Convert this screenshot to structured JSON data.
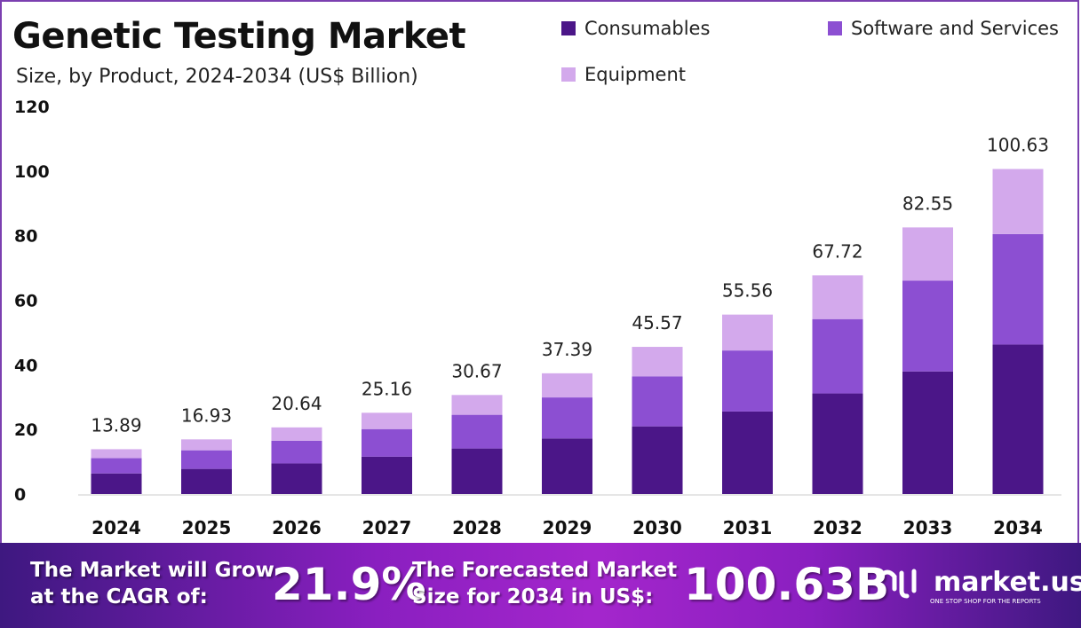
{
  "title": "Genetic Testing Market",
  "subtitle": "Size, by Product, 2024-2034 (US$ Billion)",
  "chart_data": {
    "type": "bar",
    "stacked": true,
    "title": "Genetic Testing Market",
    "subtitle": "Size, by Product, 2024-2034 (US$ Billion)",
    "categories": [
      "2024",
      "2025",
      "2026",
      "2027",
      "2028",
      "2029",
      "2030",
      "2031",
      "2032",
      "2033",
      "2034"
    ],
    "series": [
      {
        "name": "Consumables",
        "color": "#4b1688",
        "values": [
          6.39,
          7.79,
          9.49,
          11.57,
          14.11,
          17.2,
          20.96,
          25.56,
          31.15,
          37.97,
          46.29
        ]
      },
      {
        "name": "Software and Services",
        "color": "#8c4fd2",
        "values": [
          4.72,
          5.76,
          7.02,
          8.55,
          10.43,
          12.71,
          15.49,
          18.89,
          23.02,
          28.07,
          34.21
        ]
      },
      {
        "name": "Equipment",
        "color": "#d3a9ec",
        "values": [
          2.78,
          3.38,
          4.13,
          5.04,
          6.13,
          7.48,
          9.12,
          11.11,
          13.55,
          16.51,
          20.13
        ]
      }
    ],
    "totals": [
      "13.89",
      "16.93",
      "20.64",
      "25.16",
      "30.67",
      "37.39",
      "45.57",
      "55.56",
      "67.72",
      "82.55",
      "100.63"
    ],
    "ylim": [
      0,
      120
    ],
    "yticks": [
      "0",
      "20",
      "40",
      "60",
      "80",
      "100",
      "120"
    ],
    "grid": false,
    "legend_position": "top-right"
  },
  "footer": {
    "cagr_text_line1": "The Market will Grow",
    "cagr_text_line2": "at the CAGR of:",
    "cagr_value": "21.9%",
    "forecast_text_line1": "The Forecasted Market",
    "forecast_text_line2": "Size for 2034 in US$:",
    "forecast_value": "100.63B",
    "logo_name": "market.us",
    "logo_tagline": "ONE STOP SHOP FOR THE REPORTS"
  }
}
